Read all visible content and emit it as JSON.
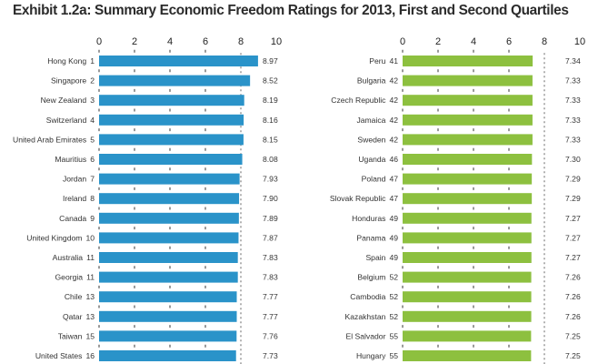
{
  "title": "Exhibit 1.2a: Summary Economic Freedom Ratings for 2013, First and Second Quartiles",
  "chart_data": [
    {
      "type": "bar",
      "orientation": "horizontal",
      "panel": "first-quartile",
      "color": "#2a93c9",
      "xlim": [
        0,
        10
      ],
      "xticks": [
        "0",
        "2",
        "4",
        "6",
        "8",
        "10"
      ],
      "reference_line": 8,
      "grid": true,
      "categories": [
        {
          "name": "Hong Kong",
          "rank": "1"
        },
        {
          "name": "Singapore",
          "rank": "2"
        },
        {
          "name": "New Zealand",
          "rank": "3"
        },
        {
          "name": "Switzerland",
          "rank": "4"
        },
        {
          "name": "United Arab Emirates",
          "rank": "5"
        },
        {
          "name": "Mauritius",
          "rank": "6"
        },
        {
          "name": "Jordan",
          "rank": "7"
        },
        {
          "name": "Ireland",
          "rank": "8"
        },
        {
          "name": "Canada",
          "rank": "9"
        },
        {
          "name": "United Kingdom",
          "rank": "10"
        },
        {
          "name": "Australia",
          "rank": "11"
        },
        {
          "name": "Georgia",
          "rank": "11"
        },
        {
          "name": "Chile",
          "rank": "13"
        },
        {
          "name": "Qatar",
          "rank": "13"
        },
        {
          "name": "Taiwan",
          "rank": "15"
        },
        {
          "name": "United States",
          "rank": "16"
        }
      ],
      "values": [
        8.97,
        8.52,
        8.19,
        8.16,
        8.15,
        8.08,
        7.93,
        7.9,
        7.89,
        7.87,
        7.83,
        7.83,
        7.77,
        7.77,
        7.76,
        7.73
      ],
      "value_labels": [
        "8.97",
        "8.52",
        "8.19",
        "8.16",
        "8.15",
        "8.08",
        "7.93",
        "7.90",
        "7.89",
        "7.87",
        "7.83",
        "7.83",
        "7.77",
        "7.77",
        "7.76",
        "7.73"
      ]
    },
    {
      "type": "bar",
      "orientation": "horizontal",
      "panel": "second-quartile",
      "color": "#8dc03f",
      "xlim": [
        0,
        10
      ],
      "xticks": [
        "0",
        "2",
        "4",
        "6",
        "8",
        "10"
      ],
      "reference_line": 8,
      "grid": true,
      "categories": [
        {
          "name": "Peru",
          "rank": "41"
        },
        {
          "name": "Bulgaria",
          "rank": "42"
        },
        {
          "name": "Czech Republic",
          "rank": "42"
        },
        {
          "name": "Jamaica",
          "rank": "42"
        },
        {
          "name": "Sweden",
          "rank": "42"
        },
        {
          "name": "Uganda",
          "rank": "46"
        },
        {
          "name": "Poland",
          "rank": "47"
        },
        {
          "name": "Slovak Republic",
          "rank": "47"
        },
        {
          "name": "Honduras",
          "rank": "49"
        },
        {
          "name": "Panama",
          "rank": "49"
        },
        {
          "name": "Spain",
          "rank": "49"
        },
        {
          "name": "Belgium",
          "rank": "52"
        },
        {
          "name": "Cambodia",
          "rank": "52"
        },
        {
          "name": "Kazakhstan",
          "rank": "52"
        },
        {
          "name": "El Salvador",
          "rank": "55"
        },
        {
          "name": "Hungary",
          "rank": "55"
        }
      ],
      "values": [
        7.34,
        7.33,
        7.33,
        7.33,
        7.33,
        7.3,
        7.29,
        7.29,
        7.27,
        7.27,
        7.27,
        7.26,
        7.26,
        7.26,
        7.25,
        7.25
      ],
      "value_labels": [
        "7.34",
        "7.33",
        "7.33",
        "7.33",
        "7.33",
        "7.30",
        "7.29",
        "7.29",
        "7.27",
        "7.27",
        "7.27",
        "7.26",
        "7.26",
        "7.26",
        "7.25",
        "7.25"
      ]
    }
  ]
}
